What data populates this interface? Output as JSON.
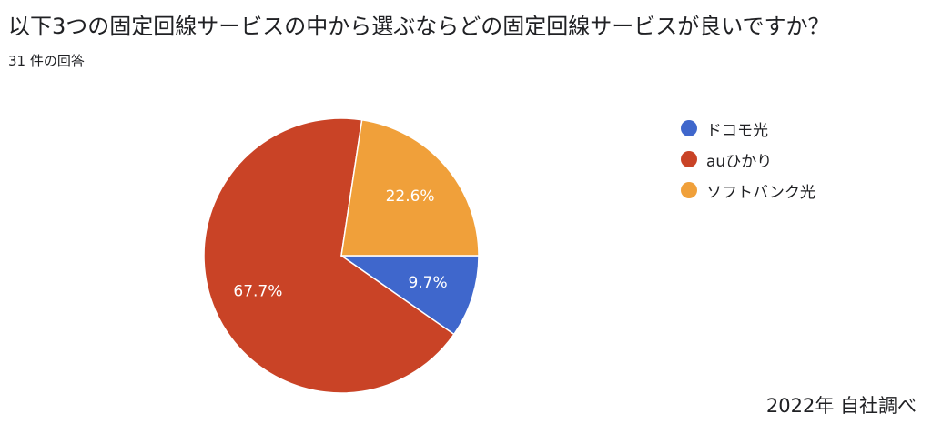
{
  "title": "以下3つの固定回線サービスの中から選ぶならどの固定回線サービスが良いですか？",
  "subtitle": "31 件の回答",
  "source": "2022年 自社調べ",
  "chart_data": {
    "type": "pie",
    "categories": [
      "ドコモ光",
      "auひかり",
      "ソフトバンク光"
    ],
    "values": [
      9.7,
      67.7,
      22.6
    ],
    "labels": [
      "9.7%",
      "67.7%",
      "22.6%"
    ],
    "colors": [
      "#3f67cc",
      "#c94326",
      "#f0a03a"
    ],
    "legend_position": "right"
  }
}
